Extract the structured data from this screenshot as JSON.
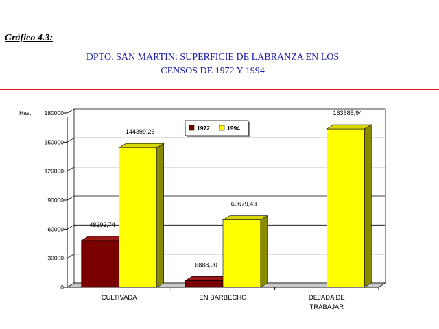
{
  "caption": "Gráfico 4.3:",
  "title_line1": "DPTO. SAN MARTIN: SUPERFICIE DE LABRANZA EN LOS",
  "title_line2": "CENSOS DE 1972 Y 1994",
  "colors": {
    "title": "#1a1aa6",
    "rule": "#e02020",
    "s1972": "#7a0000",
    "s1972_top": "#9a1a1a",
    "s1972_side": "#4a0000",
    "s1994": "#ffff00",
    "s1994_top": "#d8d800",
    "s1994_side": "#8a8a00",
    "floor": "#6e6e00"
  },
  "chart_data": {
    "type": "bar",
    "ylabel": "Has.",
    "ylim": [
      0,
      180000
    ],
    "yticks": [
      0,
      30000,
      60000,
      90000,
      120000,
      150000,
      180000
    ],
    "categories": [
      [
        "CULTIVADA"
      ],
      [
        "EN BARBECHO"
      ],
      [
        "DEJADA DE",
        "TRABAJAR"
      ]
    ],
    "series": [
      {
        "name": "1972",
        "values": [
          48292.74,
          6888.9,
          null
        ],
        "labels": [
          "48292,74",
          "6888,90",
          ""
        ]
      },
      {
        "name": "1994",
        "values": [
          144399.26,
          69679.43,
          163685.94
        ],
        "labels": [
          "144399,26",
          "69679,43",
          "163685,94"
        ]
      }
    ],
    "legend_position": "top-center",
    "grid": true,
    "three_d": true
  }
}
